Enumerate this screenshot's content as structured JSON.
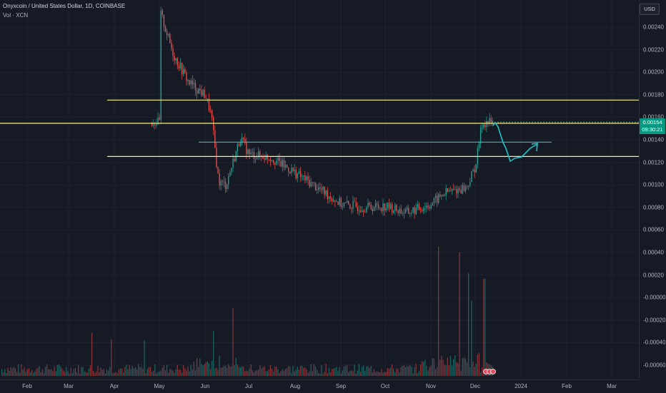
{
  "legend": {
    "title": "Onyxcoin / United States Dollar, 1D, COINBASE",
    "volume": "Vol · XCN"
  },
  "currency": "USD",
  "last_price": {
    "value": "0.00154",
    "countdown": "09:30:21"
  },
  "colors": {
    "background": "#161a25",
    "up": "#26a69a",
    "down": "#ef5350",
    "level_line": "#f7f082",
    "drawing": "#22c3c9"
  },
  "price_axis": [
    "0.00240",
    "0.00220",
    "0.00200",
    "0.00180",
    "0.00160",
    "0.00140",
    "0.00120",
    "0.00100",
    "0.00080",
    "0.00060",
    "0.00040",
    "0.00020",
    "-0.00000",
    "-0.00020",
    "-0.00040",
    "-0.00060"
  ],
  "time_axis": [
    "Feb",
    "Mar",
    "Apr",
    "May",
    "Jun",
    "Jul",
    "Aug",
    "Sep",
    "Oct",
    "Nov",
    "Dec",
    "2024",
    "Feb",
    "Mar"
  ],
  "chart_data": {
    "type": "candlestick",
    "symbol": "Onyxcoin / United States Dollar",
    "interval": "1D",
    "exchange": "COINBASE",
    "ylim": [
      -0.00066,
      0.00252
    ],
    "grid": true,
    "horizontal_levels": [
      0.00174,
      0.00153,
      0.00123
    ],
    "trendline_level": 0.00136,
    "close_series": [
      {
        "x": "2023-05-01",
        "y": 0.00255
      },
      {
        "x": "2023-05-10",
        "y": 0.00215
      },
      {
        "x": "2023-05-20",
        "y": 0.0019
      },
      {
        "x": "2023-06-01",
        "y": 0.00178
      },
      {
        "x": "2023-06-05",
        "y": 0.0016
      },
      {
        "x": "2023-06-10",
        "y": 0.001
      },
      {
        "x": "2023-06-15",
        "y": 0.00097
      },
      {
        "x": "2023-06-25",
        "y": 0.0014
      },
      {
        "x": "2023-07-01",
        "y": 0.00125
      },
      {
        "x": "2023-07-15",
        "y": 0.00122
      },
      {
        "x": "2023-08-01",
        "y": 0.00108
      },
      {
        "x": "2023-08-15",
        "y": 0.00095
      },
      {
        "x": "2023-09-01",
        "y": 0.0008
      },
      {
        "x": "2023-09-15",
        "y": 0.00077
      },
      {
        "x": "2023-10-01",
        "y": 0.00078
      },
      {
        "x": "2023-10-15",
        "y": 0.00072
      },
      {
        "x": "2023-11-01",
        "y": 0.0008
      },
      {
        "x": "2023-11-10",
        "y": 0.0009
      },
      {
        "x": "2023-11-25",
        "y": 0.00095
      },
      {
        "x": "2023-12-01",
        "y": 0.00115
      },
      {
        "x": "2023-12-05",
        "y": 0.00152
      },
      {
        "x": "2023-12-08",
        "y": 0.00154
      }
    ]
  }
}
